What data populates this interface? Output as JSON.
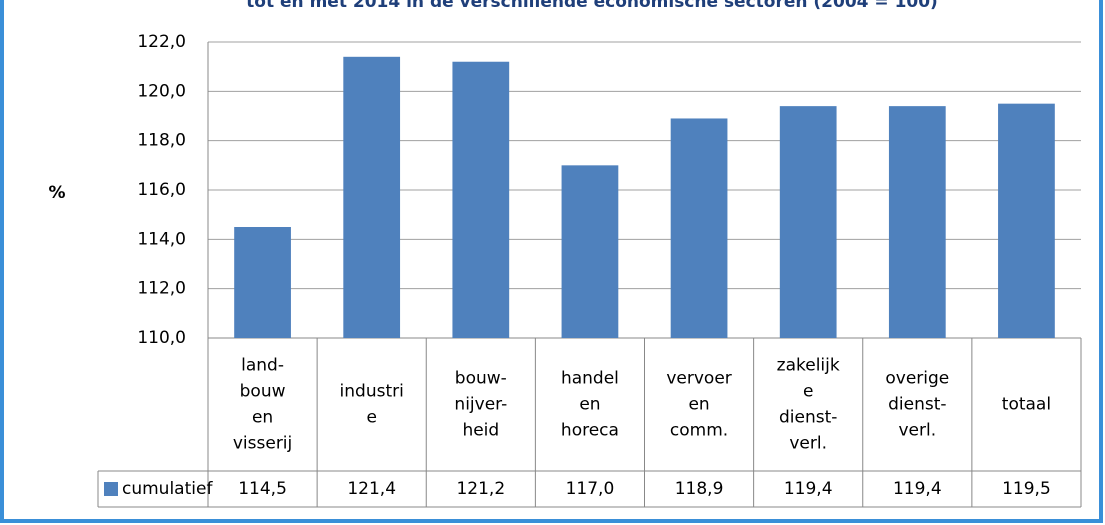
{
  "chart_data": {
    "type": "bar",
    "title": "tot en met 2014 in de verschillende economische sectoren (2004 = 100)",
    "y_label": "%",
    "categories": [
      "land-\nbouw\nen\nvisserij",
      "industri\ne",
      "bouw-\nnijver-\nheid",
      "handel\nen\nhoreca",
      "vervoer\nen\ncomm.",
      "zakelijk\ne\ndienst-\nverl.",
      "overige\ndienst-\nverl.",
      "totaal"
    ],
    "series": [
      {
        "name": "cumulatief",
        "color": "#4f81bd",
        "values": [
          114.5,
          121.4,
          121.2,
          117.0,
          118.9,
          119.4,
          119.4,
          119.5
        ],
        "value_labels": [
          "114,5",
          "121,4",
          "121,2",
          "117,0",
          "118,9",
          "119,4",
          "119,4",
          "119,5"
        ]
      }
    ],
    "ylim": [
      110,
      122
    ],
    "yticks": [
      {
        "value": 110,
        "label": "110,0"
      },
      {
        "value": 112,
        "label": "112,0"
      },
      {
        "value": 114,
        "label": "114,0"
      },
      {
        "value": 116,
        "label": "116,0"
      },
      {
        "value": 118,
        "label": "118,0"
      },
      {
        "value": 120,
        "label": "120,0"
      },
      {
        "value": 122,
        "label": "122,0"
      }
    ],
    "grid": true
  }
}
